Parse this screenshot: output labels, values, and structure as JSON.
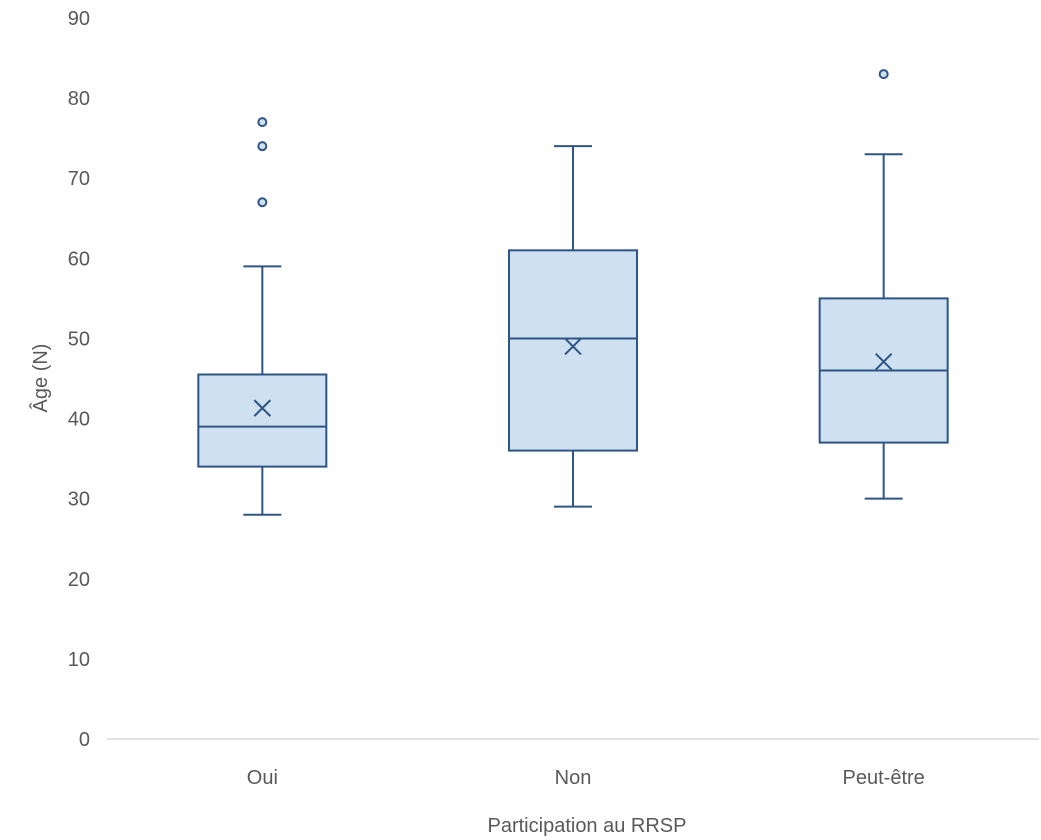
{
  "chart_data": {
    "type": "box",
    "title": "",
    "xlabel": "Participation au RRSP",
    "ylabel": "Âge (N)",
    "ylim": [
      0,
      90
    ],
    "yticks": [
      0,
      10,
      20,
      30,
      40,
      50,
      60,
      70,
      80,
      90
    ],
    "grid": false,
    "categories": [
      "Oui",
      "Non",
      "Peut-être"
    ],
    "boxes": [
      {
        "category": "Oui",
        "min": 28,
        "q1": 34,
        "median": 39,
        "q3": 45.5,
        "max": 59,
        "mean": 41.3,
        "outliers": [
          67,
          74,
          77
        ]
      },
      {
        "category": "Non",
        "min": 29,
        "q1": 36,
        "median": 50,
        "q3": 61,
        "max": 74,
        "mean": 49,
        "outliers": []
      },
      {
        "category": "Peut-être",
        "min": 30,
        "q1": 37,
        "median": 46,
        "q3": 55,
        "max": 73,
        "mean": 47.1,
        "outliers": [
          83
        ]
      }
    ],
    "colors": {
      "box_fill": "#cfe0f1",
      "stroke": "#2e5584",
      "axis": "#d9d9d9",
      "text": "#595959"
    }
  }
}
